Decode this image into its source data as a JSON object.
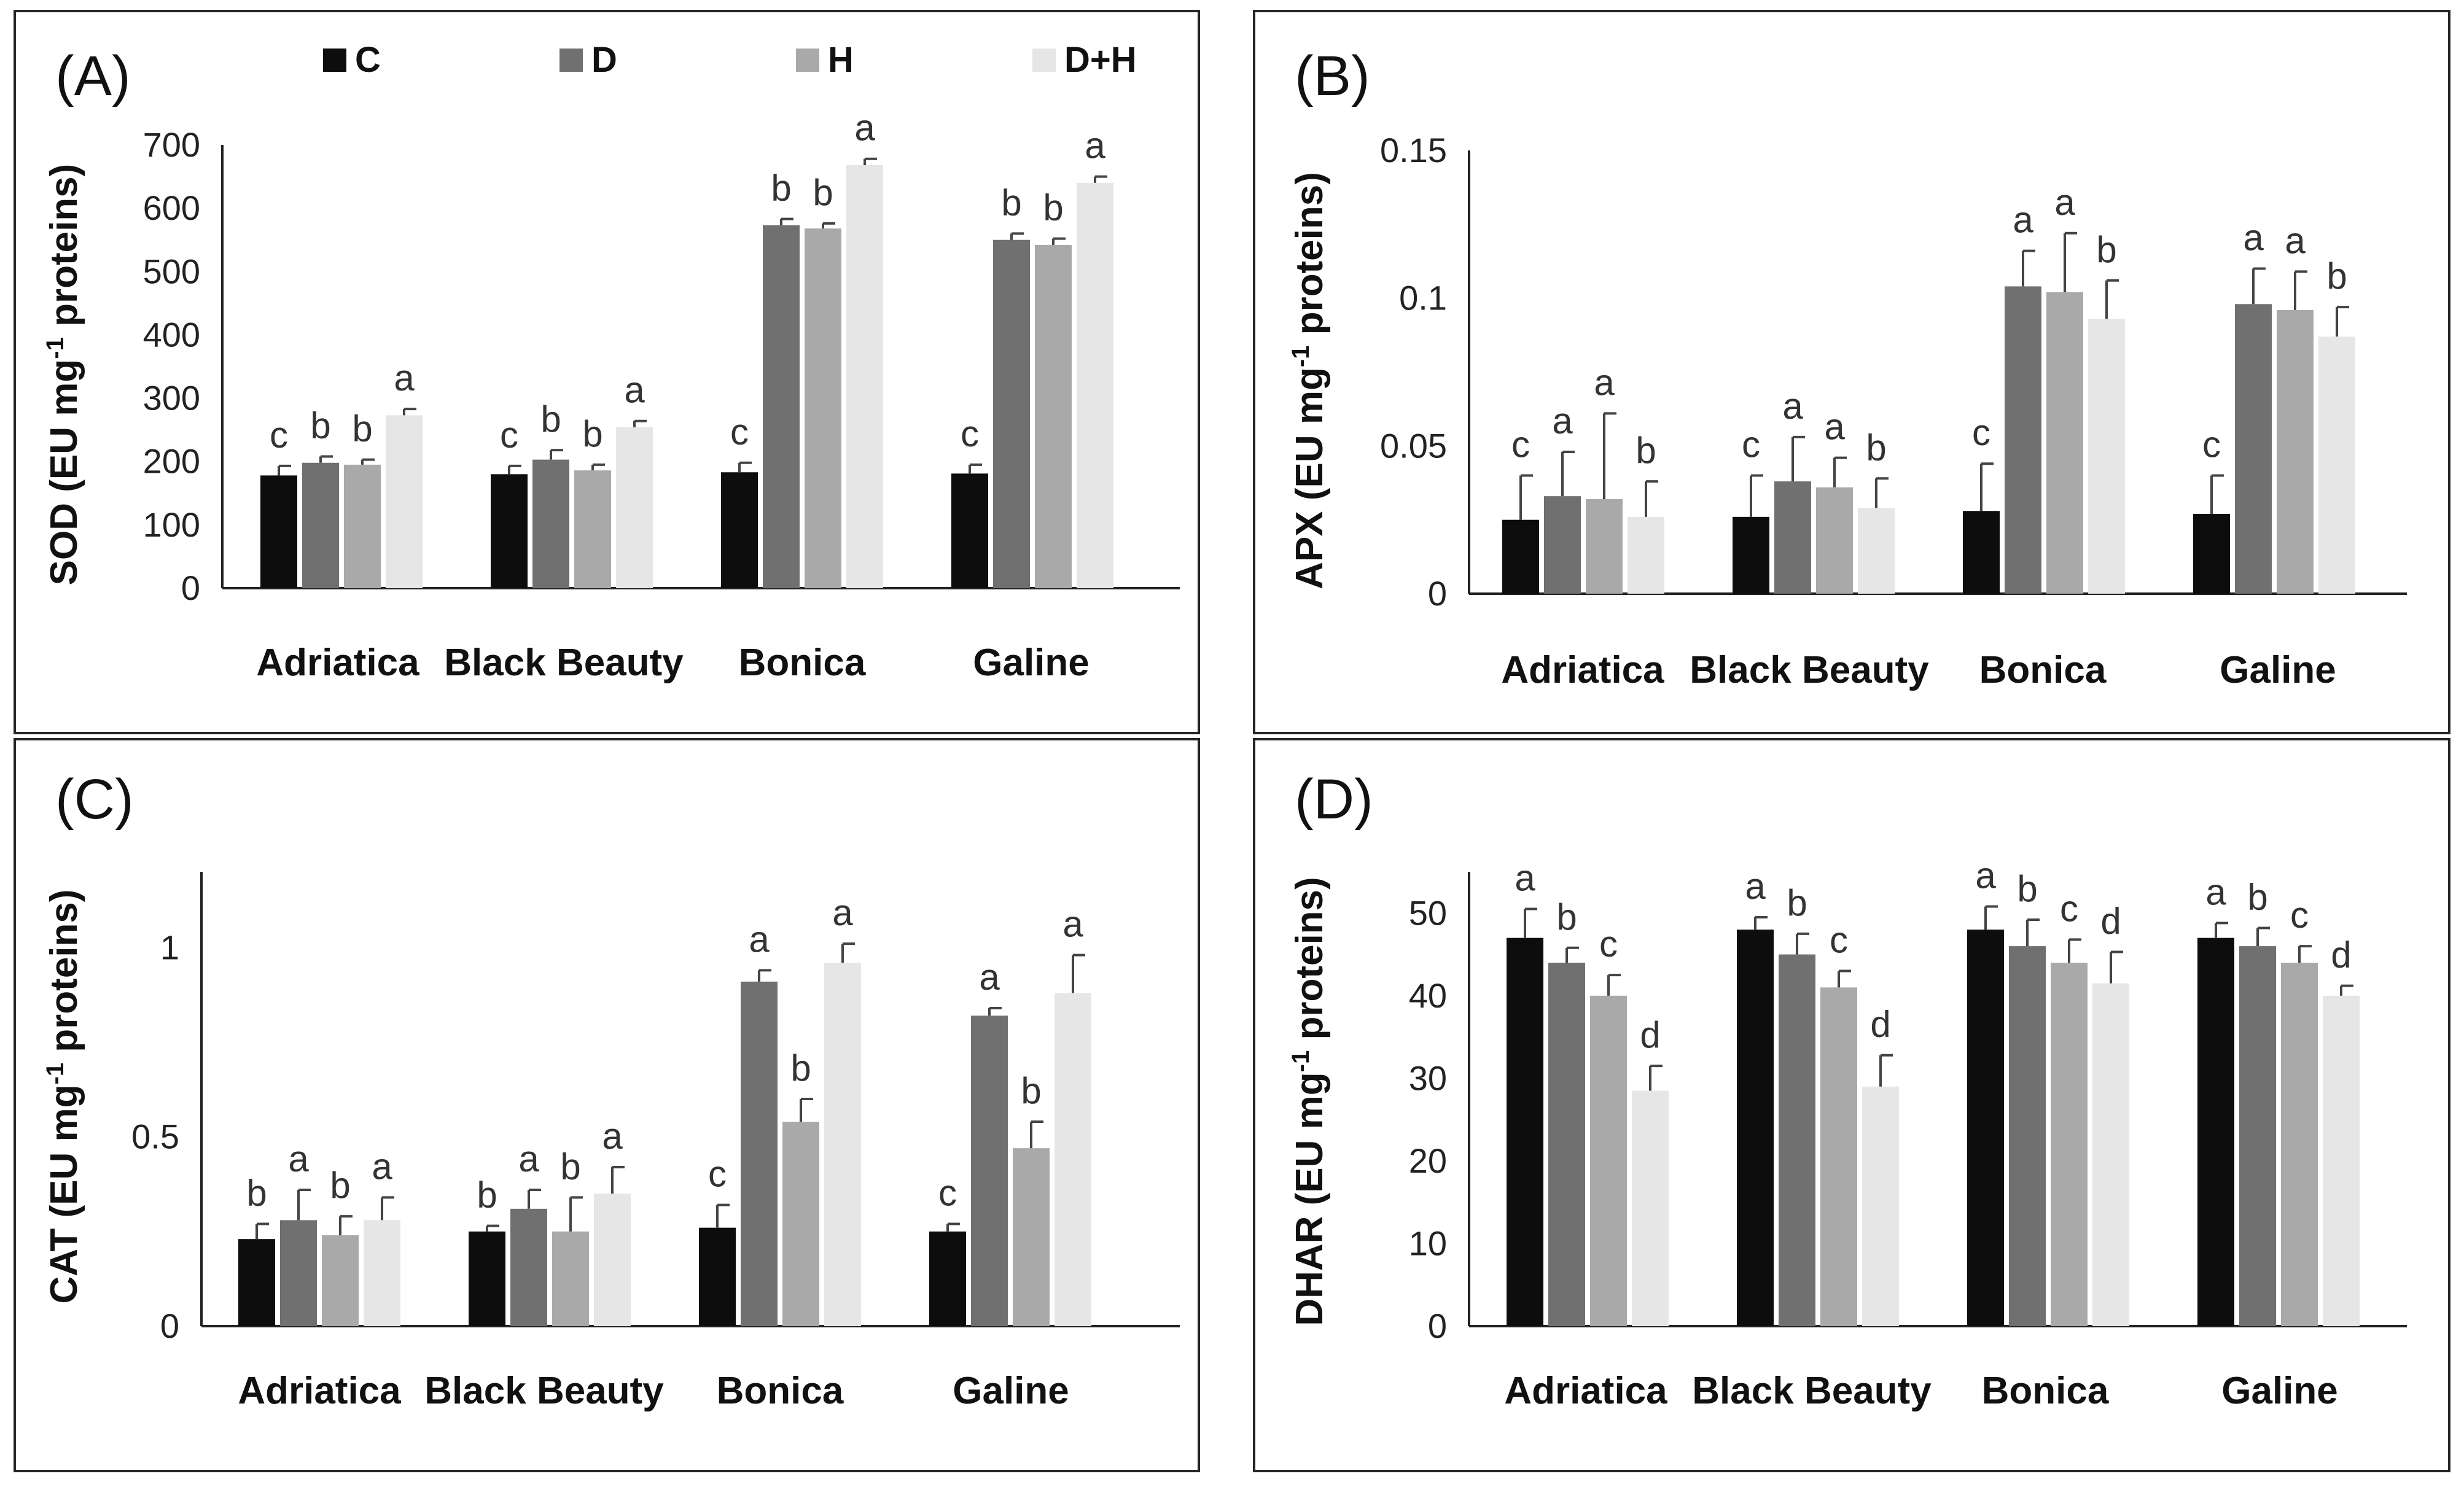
{
  "legend": [
    {
      "label": "C",
      "color": "#0d0d0d"
    },
    {
      "label": "D",
      "color": "#707070"
    },
    {
      "label": "H",
      "color": "#a9a9a9"
    },
    {
      "label": "D+H",
      "color": "#e6e6e6"
    }
  ],
  "chart_data": [
    {
      "type": "bar",
      "panel": "(A)",
      "ylabel_prefix": "SOD (EU mg",
      "ylabel_sup": "-1",
      "ylabel_suffix": " proteins)",
      "categories": [
        "Adriatica",
        "Black Beauty",
        "Bonica",
        "Galine"
      ],
      "ylim": [
        0,
        700
      ],
      "yticks": [
        0,
        100,
        200,
        300,
        400,
        500,
        600,
        700
      ],
      "ytick_labels": [
        "0",
        "100",
        "200",
        "300",
        "400",
        "500",
        "600",
        "700"
      ],
      "series": [
        {
          "name": "C",
          "values": [
            178,
            180,
            183,
            181
          ],
          "errors": [
            15,
            13,
            15,
            14
          ],
          "letters": [
            "c",
            "c",
            "c",
            "c"
          ]
        },
        {
          "name": "D",
          "values": [
            198,
            203,
            573,
            550
          ],
          "errors": [
            10,
            15,
            10,
            10
          ],
          "letters": [
            "b",
            "b",
            "b",
            "b"
          ]
        },
        {
          "name": "H",
          "values": [
            195,
            186,
            568,
            542
          ],
          "errors": [
            8,
            9,
            8,
            10
          ],
          "letters": [
            "b",
            "b",
            "b",
            "b"
          ]
        },
        {
          "name": "D+H",
          "values": [
            273,
            254,
            668,
            640
          ],
          "errors": [
            10,
            10,
            10,
            10
          ],
          "letters": [
            "a",
            "a",
            "a",
            "a"
          ]
        }
      ]
    },
    {
      "type": "bar",
      "panel": "(B)",
      "ylabel_prefix": "APX (EU mg",
      "ylabel_sup": "-1",
      "ylabel_suffix": " proteins)",
      "categories": [
        "Adriatica",
        "Black Beauty",
        "Bonica",
        "Galine"
      ],
      "ylim": [
        0,
        0.15
      ],
      "yticks": [
        0,
        0.05,
        0.1,
        0.15
      ],
      "ytick_labels": [
        "0",
        "0.05",
        "0.1",
        "0.15"
      ],
      "series": [
        {
          "name": "C",
          "values": [
            0.025,
            0.026,
            0.028,
            0.027
          ],
          "errors": [
            0.015,
            0.014,
            0.016,
            0.013
          ],
          "letters": [
            "c",
            "c",
            "c",
            "c"
          ]
        },
        {
          "name": "D",
          "values": [
            0.033,
            0.038,
            0.104,
            0.098
          ],
          "errors": [
            0.015,
            0.015,
            0.012,
            0.012
          ],
          "letters": [
            "a",
            "a",
            "a",
            "a"
          ]
        },
        {
          "name": "H",
          "values": [
            0.032,
            0.036,
            0.102,
            0.096
          ],
          "errors": [
            0.029,
            0.01,
            0.02,
            0.013
          ],
          "letters": [
            "a",
            "a",
            "a",
            "a"
          ]
        },
        {
          "name": "D+H",
          "values": [
            0.026,
            0.029,
            0.093,
            0.087
          ],
          "errors": [
            0.012,
            0.01,
            0.013,
            0.01
          ],
          "letters": [
            "b",
            "b",
            "b",
            "b"
          ]
        }
      ]
    },
    {
      "type": "bar",
      "panel": "(C)",
      "ylabel_prefix": "CAT (EU mg",
      "ylabel_sup": "-1",
      "ylabel_suffix": " proteins)",
      "categories": [
        "Adriatica",
        "Black Beauty",
        "Bonica",
        "Galine"
      ],
      "ylim": [
        0,
        1.2
      ],
      "yticks": [
        0,
        0.5,
        1
      ],
      "ytick_labels": [
        "0",
        "0.5",
        "1"
      ],
      "series": [
        {
          "name": "C",
          "values": [
            0.23,
            0.25,
            0.26,
            0.25
          ],
          "errors": [
            0.04,
            0.015,
            0.06,
            0.02
          ],
          "letters": [
            "b",
            "b",
            "c",
            "c"
          ]
        },
        {
          "name": "D",
          "values": [
            0.28,
            0.31,
            0.91,
            0.82
          ],
          "errors": [
            0.08,
            0.05,
            0.03,
            0.02
          ],
          "letters": [
            "a",
            "a",
            "a",
            "a"
          ]
        },
        {
          "name": "H",
          "values": [
            0.24,
            0.25,
            0.54,
            0.47
          ],
          "errors": [
            0.05,
            0.09,
            0.06,
            0.07
          ],
          "letters": [
            "b",
            "b",
            "b",
            "b"
          ]
        },
        {
          "name": "D+H",
          "values": [
            0.28,
            0.35,
            0.96,
            0.88
          ],
          "errors": [
            0.06,
            0.07,
            0.05,
            0.1
          ],
          "letters": [
            "a",
            "a",
            "a",
            "a"
          ]
        }
      ]
    },
    {
      "type": "bar",
      "panel": "(D)",
      "ylabel_prefix": "DHAR (EU mg",
      "ylabel_sup": "-1",
      "ylabel_suffix": " proteins)",
      "categories": [
        "Adriatica",
        "Black Beauty",
        "Bonica",
        "Galine"
      ],
      "ylim": [
        0,
        55
      ],
      "yticks": [
        0,
        10,
        20,
        30,
        40,
        50
      ],
      "ytick_labels": [
        "0",
        "10",
        "20",
        "30",
        "40",
        "50"
      ],
      "series": [
        {
          "name": "C",
          "values": [
            47,
            48,
            48,
            47
          ],
          "errors": [
            3.5,
            1.5,
            2.8,
            1.8
          ],
          "letters": [
            "a",
            "a",
            "a",
            "a"
          ]
        },
        {
          "name": "D",
          "values": [
            44,
            45,
            46,
            46
          ],
          "errors": [
            1.8,
            2.5,
            3.2,
            2.2
          ],
          "letters": [
            "b",
            "b",
            "b",
            "b"
          ]
        },
        {
          "name": "H",
          "values": [
            40,
            41,
            44,
            44
          ],
          "errors": [
            2.5,
            2.0,
            2.8,
            2.0
          ],
          "letters": [
            "c",
            "c",
            "c",
            "c"
          ]
        },
        {
          "name": "D+H",
          "values": [
            28.5,
            29,
            41.5,
            40
          ],
          "errors": [
            3.0,
            3.8,
            3.8,
            1.2
          ],
          "letters": [
            "d",
            "d",
            "d",
            "d"
          ]
        }
      ]
    }
  ]
}
